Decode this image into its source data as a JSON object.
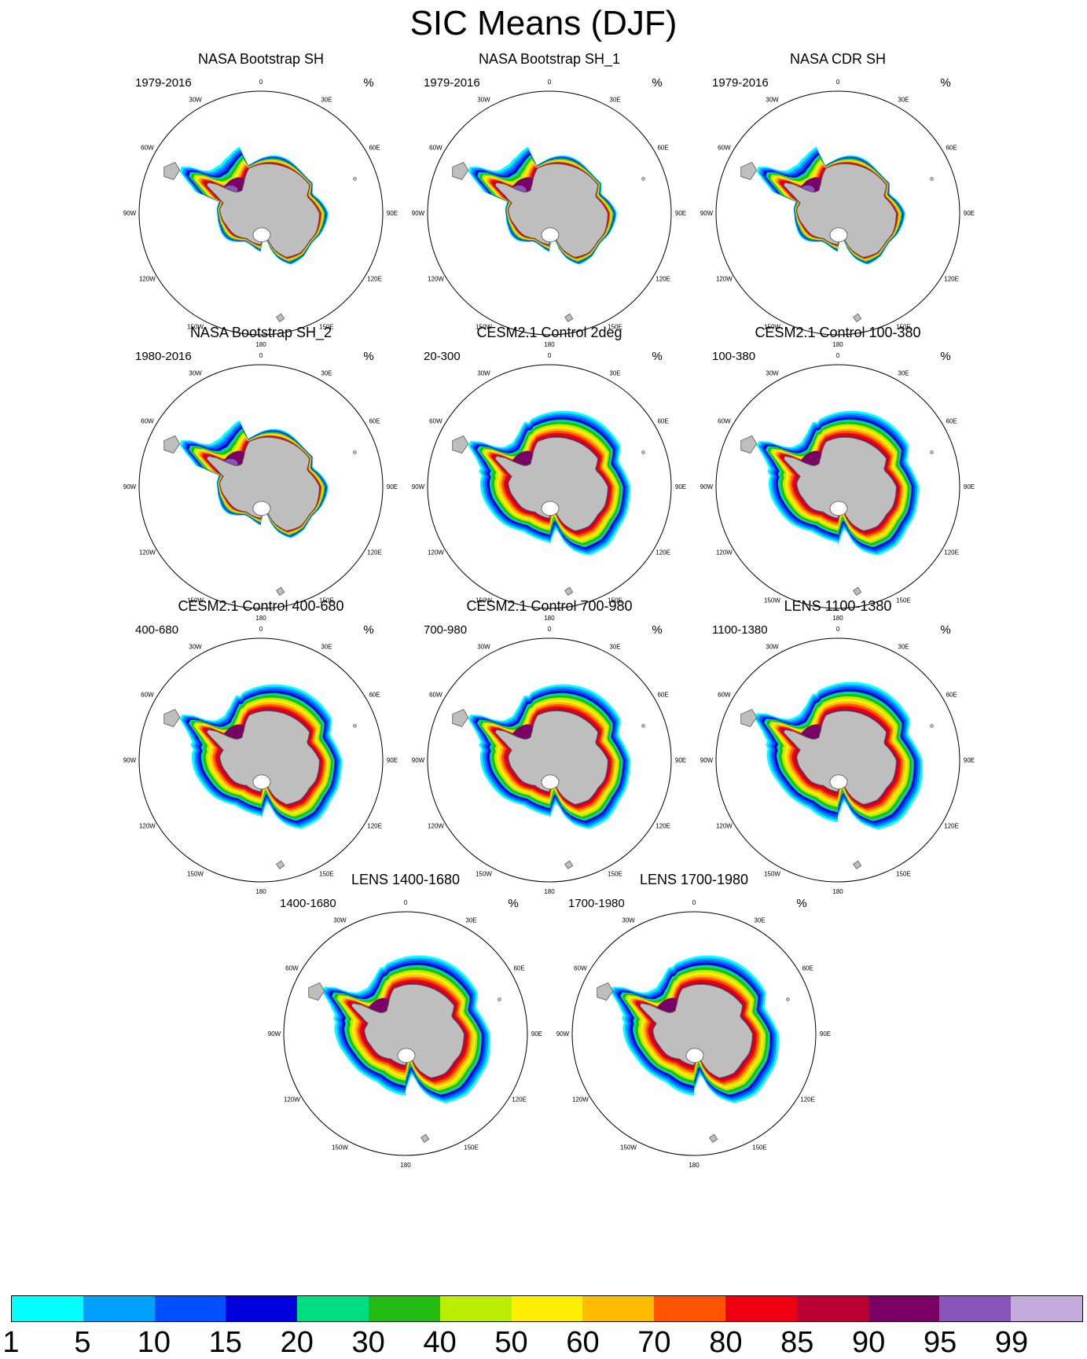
{
  "title": "SIC Means (DJF)",
  "units_label": "%",
  "projection_labels": {
    "lon_0": "0",
    "lon_30e": "30E",
    "lon_60e": "60E",
    "lon_90e": "90E",
    "lon_120e": "120E",
    "lon_150e": "150E",
    "lon_180": "180",
    "lon_150w": "150W",
    "lon_120w": "120W",
    "lon_90w": "90W",
    "lon_60w": "60W",
    "lon_30w": "30W"
  },
  "panels": [
    {
      "title": "NASA Bootstrap SH",
      "period": "1979-2016",
      "kind": "obs"
    },
    {
      "title": "NASA Bootstrap SH_1",
      "period": "1979-2016",
      "kind": "obs"
    },
    {
      "title": "NASA CDR SH",
      "period": "1979-2016",
      "kind": "obs"
    },
    {
      "title": "NASA Bootstrap SH_2",
      "period": "1980-2016",
      "kind": "obs"
    },
    {
      "title": "CESM2.1 Control 2deg",
      "period": "20-300",
      "kind": "model"
    },
    {
      "title": "CESM2.1 Control 100-380",
      "period": "100-380",
      "kind": "model"
    },
    {
      "title": "CESM2.1 Control 400-680",
      "period": "400-680",
      "kind": "model"
    },
    {
      "title": "CESM2.1 Control 700-980",
      "period": "700-980",
      "kind": "model"
    },
    {
      "title": "LENS 1100-1380",
      "period": "1100-1380",
      "kind": "lens"
    },
    {
      "title": "LENS 1400-1680",
      "period": "1400-1680",
      "kind": "lens"
    },
    {
      "title": "LENS 1700-1980",
      "period": "1700-1980",
      "kind": "lens"
    }
  ],
  "colorbar": {
    "labels": [
      "1",
      "5",
      "10",
      "15",
      "20",
      "30",
      "40",
      "50",
      "60",
      "70",
      "80",
      "85",
      "90",
      "95",
      "99"
    ],
    "colors": [
      "#00ffff",
      "#00a0ff",
      "#0050ff",
      "#0000dc",
      "#00dc80",
      "#22bb11",
      "#bbee00",
      "#ffee00",
      "#ffbb00",
      "#ff5500",
      "#ee0011",
      "#bb0033",
      "#7a0066",
      "#8855bb",
      "#c4aadd"
    ]
  },
  "colors": {
    "land": "#bebebe",
    "coast": "#555555",
    "ring": "#000000"
  }
}
